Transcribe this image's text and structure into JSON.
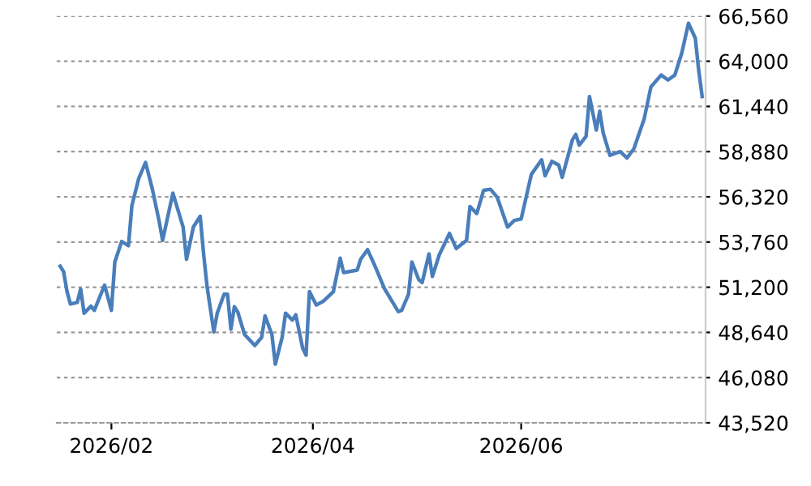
{
  "chart_data": {
    "type": "line",
    "x": [
      "2026-01-17",
      "2026-01-18",
      "2026-01-19",
      "2026-01-20",
      "2026-01-22",
      "2026-01-23",
      "2026-01-24",
      "2026-01-26",
      "2026-01-27",
      "2026-01-30",
      "2026-02-01",
      "2026-02-02",
      "2026-02-04",
      "2026-02-06",
      "2026-02-07",
      "2026-02-09",
      "2026-02-11",
      "2026-02-13",
      "2026-02-15",
      "2026-02-16",
      "2026-02-19",
      "2026-02-22",
      "2026-02-23",
      "2026-02-25",
      "2026-02-27",
      "2026-02-28",
      "2026-03-01",
      "2026-03-03",
      "2026-03-04",
      "2026-03-06",
      "2026-03-07",
      "2026-03-08",
      "2026-03-09",
      "2026-03-10",
      "2026-03-12",
      "2026-03-15",
      "2026-03-17",
      "2026-03-18",
      "2026-03-20",
      "2026-03-21",
      "2026-03-23",
      "2026-03-24",
      "2026-03-26",
      "2026-03-27",
      "2026-03-29",
      "2026-03-30",
      "2026-03-31",
      "2026-04-02",
      "2026-04-04",
      "2026-04-07",
      "2026-04-09",
      "2026-04-10",
      "2026-04-14",
      "2026-04-15",
      "2026-04-17",
      "2026-04-19",
      "2026-04-22",
      "2026-04-26",
      "2026-04-27",
      "2026-04-29",
      "2026-04-30",
      "2026-05-02",
      "2026-05-03",
      "2026-05-05",
      "2026-05-06",
      "2026-05-08",
      "2026-05-11",
      "2026-05-13",
      "2026-05-16",
      "2026-05-17",
      "2026-05-19",
      "2026-05-21",
      "2026-05-23",
      "2026-05-25",
      "2026-05-28",
      "2026-05-30",
      "2026-06-01",
      "2026-06-04",
      "2026-06-07",
      "2026-06-08",
      "2026-06-10",
      "2026-06-12",
      "2026-06-13",
      "2026-06-16",
      "2026-06-17",
      "2026-06-18",
      "2026-06-20",
      "2026-06-21",
      "2026-06-23",
      "2026-06-24",
      "2026-06-25",
      "2026-06-27",
      "2026-06-30",
      "2026-07-02",
      "2026-07-04",
      "2026-07-07",
      "2026-07-09",
      "2026-07-12",
      "2026-07-14",
      "2026-07-16",
      "2026-07-18",
      "2026-07-20",
      "2026-07-22",
      "2026-07-23",
      "2026-07-24"
    ],
    "series": [
      {
        "color": "#4a7ebb",
        "values": [
          52390,
          52080,
          50960,
          50250,
          50340,
          51100,
          49730,
          50130,
          49890,
          51320,
          49890,
          52630,
          53790,
          53550,
          55830,
          57360,
          58270,
          56750,
          54920,
          53850,
          56530,
          54610,
          52780,
          54610,
          55220,
          53090,
          51260,
          48670,
          49740,
          50800,
          50800,
          48820,
          50100,
          49800,
          48520,
          47900,
          48360,
          49580,
          48520,
          46840,
          48360,
          49730,
          49340,
          49640,
          47750,
          47350,
          50950,
          50190,
          50400,
          50950,
          52850,
          52030,
          52170,
          52790,
          53330,
          52480,
          51110,
          49820,
          49890,
          50800,
          52630,
          51630,
          51470,
          53090,
          51810,
          53030,
          54250,
          53390,
          53850,
          55770,
          55370,
          56690,
          56750,
          56290,
          54610,
          54980,
          55070,
          57600,
          58420,
          57510,
          58330,
          58120,
          57420,
          59550,
          59860,
          59250,
          59740,
          62000,
          60100,
          61170,
          59950,
          58670,
          58880,
          58520,
          59040,
          60720,
          62550,
          63220,
          62940,
          63220,
          64440,
          66150,
          65300,
          63470,
          62000
        ]
      }
    ],
    "xlim": [
      "2026-01-16",
      "2026-07-25"
    ],
    "xticks": [
      {
        "value": "2026-02-01",
        "label": "2026/02"
      },
      {
        "value": "2026-04-01",
        "label": "2026/04"
      },
      {
        "value": "2026-06-01",
        "label": "2026/06"
      }
    ],
    "ylim": [
      43520,
      66560
    ],
    "yticks": [
      {
        "value": 43520,
        "label": "43,520"
      },
      {
        "value": 46080,
        "label": "46,080"
      },
      {
        "value": 48640,
        "label": "48,640"
      },
      {
        "value": 51200,
        "label": "51,200"
      },
      {
        "value": 53760,
        "label": "53,760"
      },
      {
        "value": 56320,
        "label": "56,320"
      },
      {
        "value": 58880,
        "label": "58,880"
      },
      {
        "value": 61440,
        "label": "61,440"
      },
      {
        "value": 64000,
        "label": "64,000"
      },
      {
        "value": 66560,
        "label": "66,560"
      }
    ],
    "grid": "y",
    "legend": false,
    "marker": "none",
    "line_style": "solid"
  }
}
